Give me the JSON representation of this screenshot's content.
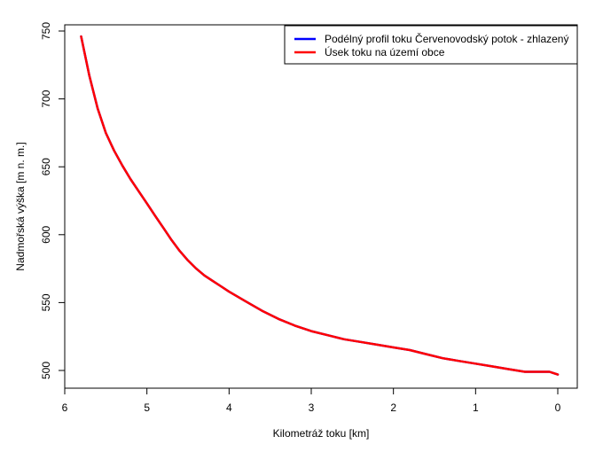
{
  "chart_data": {
    "type": "line",
    "title": "",
    "xlabel": "Kilometráž toku [km]",
    "ylabel": "Nadmořská výška [m n. m.]",
    "xlim": [
      6,
      0
    ],
    "ylim": [
      492,
      754
    ],
    "x_reversed": true,
    "xticks": [
      6,
      5,
      4,
      3,
      2,
      1,
      0
    ],
    "yticks": [
      500,
      550,
      600,
      650,
      700,
      750
    ],
    "grid": false,
    "legend_position": "top-right",
    "series": [
      {
        "name": "Podélný profil toku Červenovodský potok - zhlazený",
        "color": "#0000ff",
        "x": [
          5.8,
          5.7,
          5.6,
          5.5,
          5.4,
          5.3,
          5.2,
          5.1,
          5.0,
          4.9,
          4.8,
          4.7,
          4.6,
          4.5,
          4.4,
          4.3,
          4.2,
          4.1,
          4.0,
          3.8,
          3.6,
          3.4,
          3.2,
          3.0,
          2.8,
          2.6,
          2.4,
          2.2,
          2.0,
          1.8,
          1.6,
          1.4,
          1.2,
          1.0,
          0.8,
          0.6,
          0.4,
          0.3,
          0.2,
          0.1,
          0.05,
          0.0
        ],
        "y": [
          746,
          717,
          693,
          675,
          662,
          651,
          641,
          632,
          623,
          614,
          605,
          596,
          588,
          581,
          575,
          570,
          566,
          562,
          558,
          551,
          544,
          538,
          533,
          529,
          526,
          523,
          521,
          519,
          517,
          515,
          512,
          509,
          507,
          505,
          503,
          501,
          499,
          499,
          499,
          499,
          498,
          497
        ]
      },
      {
        "name": "Úsek toku na území obce",
        "color": "#ff0000",
        "x": [
          5.8,
          5.7,
          5.6,
          5.5,
          5.4,
          5.3,
          5.2,
          5.1,
          5.0,
          4.9,
          4.8,
          4.7,
          4.6,
          4.5,
          4.4,
          4.3,
          4.2,
          4.1,
          4.0,
          3.8,
          3.6,
          3.4,
          3.2,
          3.0,
          2.8,
          2.6,
          2.4,
          2.2,
          2.0,
          1.8,
          1.6,
          1.4,
          1.2,
          1.0,
          0.8,
          0.6,
          0.4,
          0.3,
          0.2,
          0.1,
          0.05,
          0.0
        ],
        "y": [
          746,
          717,
          693,
          675,
          662,
          651,
          641,
          632,
          623,
          614,
          605,
          596,
          588,
          581,
          575,
          570,
          566,
          562,
          558,
          551,
          544,
          538,
          533,
          529,
          526,
          523,
          521,
          519,
          517,
          515,
          512,
          509,
          507,
          505,
          503,
          501,
          499,
          499,
          499,
          499,
          498,
          497
        ]
      }
    ]
  }
}
